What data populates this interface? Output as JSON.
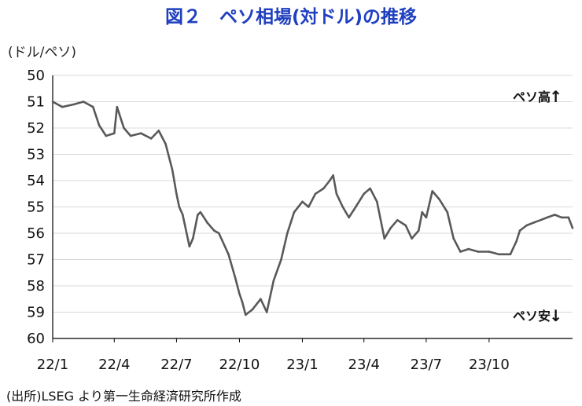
{
  "chart_data": {
    "type": "line",
    "title": "図２　ペソ相場(対ドル)の推移",
    "ylabel": "(ドル/ペソ)",
    "source": "(出所)LSEG より第一生命経済研究所作成",
    "y_inverted": true,
    "ylim": [
      50,
      60
    ],
    "y_ticks": [
      "50",
      "51",
      "52",
      "53",
      "54",
      "55",
      "56",
      "57",
      "58",
      "59",
      "60"
    ],
    "x_tick_labels": [
      "22/1",
      "22/4",
      "22/7",
      "22/10",
      "23/1",
      "23/4",
      "23/7",
      "23/10"
    ],
    "x_range": [
      "2022-01-01",
      "2024-01-31"
    ],
    "grid": true,
    "annotations": [
      {
        "text": "ペソ高",
        "arrow": "↑",
        "anchor": "top-right"
      },
      {
        "text": "ペソ安",
        "arrow": "↓",
        "anchor": "bottom-right"
      }
    ],
    "line_color": "#595959",
    "series": [
      {
        "x": [
          "2022-01-01",
          "2022-01-15",
          "2022-02-01",
          "2022-02-15",
          "2022-03-01",
          "2022-03-10",
          "2022-03-20",
          "2022-04-01",
          "2022-04-05",
          "2022-04-15",
          "2022-04-25",
          "2022-05-10",
          "2022-05-25",
          "2022-06-05",
          "2022-06-15",
          "2022-06-25",
          "2022-07-01",
          "2022-07-05",
          "2022-07-10",
          "2022-07-20",
          "2022-07-25",
          "2022-08-01",
          "2022-08-05",
          "2022-08-15",
          "2022-08-25",
          "2022-09-01",
          "2022-09-15",
          "2022-09-25",
          "2022-10-01",
          "2022-10-05",
          "2022-10-10",
          "2022-10-20",
          "2022-11-01",
          "2022-11-10",
          "2022-11-20",
          "2022-12-01",
          "2022-12-10",
          "2022-12-20",
          "2023-01-01",
          "2023-01-10",
          "2023-01-20",
          "2023-02-01",
          "2023-02-10",
          "2023-02-15",
          "2023-02-20",
          "2023-03-01",
          "2023-03-10",
          "2023-03-20",
          "2023-04-01",
          "2023-04-10",
          "2023-04-20",
          "2023-05-01",
          "2023-05-10",
          "2023-05-20",
          "2023-06-01",
          "2023-06-10",
          "2023-06-20",
          "2023-06-25",
          "2023-07-01",
          "2023-07-10",
          "2023-07-20",
          "2023-08-01",
          "2023-08-10",
          "2023-08-20",
          "2023-09-01",
          "2023-09-15",
          "2023-10-01",
          "2023-10-15",
          "2023-11-01",
          "2023-11-10",
          "2023-11-15",
          "2023-11-25",
          "2023-12-05",
          "2023-12-15",
          "2023-12-25",
          "2024-01-05",
          "2024-01-15",
          "2024-01-25",
          "2024-01-31"
        ],
        "values": [
          51.0,
          51.2,
          51.1,
          51.0,
          51.2,
          51.9,
          52.3,
          52.2,
          51.2,
          52.0,
          52.3,
          52.2,
          52.4,
          52.1,
          52.6,
          53.6,
          54.5,
          55.0,
          55.3,
          56.5,
          56.2,
          55.3,
          55.2,
          55.6,
          55.9,
          56.0,
          56.8,
          57.7,
          58.3,
          58.6,
          59.1,
          58.9,
          58.5,
          59.0,
          57.8,
          57.0,
          56.0,
          55.2,
          54.8,
          55.0,
          54.5,
          54.3,
          54.0,
          53.8,
          54.5,
          55.0,
          55.4,
          55.0,
          54.5,
          54.3,
          54.8,
          56.2,
          55.8,
          55.5,
          55.7,
          56.2,
          55.9,
          55.2,
          55.4,
          54.4,
          54.7,
          55.2,
          56.2,
          56.7,
          56.6,
          56.7,
          56.7,
          56.8,
          56.8,
          56.3,
          55.9,
          55.7,
          55.6,
          55.5,
          55.4,
          55.3,
          55.4,
          55.4,
          55.8
        ]
      }
    ]
  }
}
